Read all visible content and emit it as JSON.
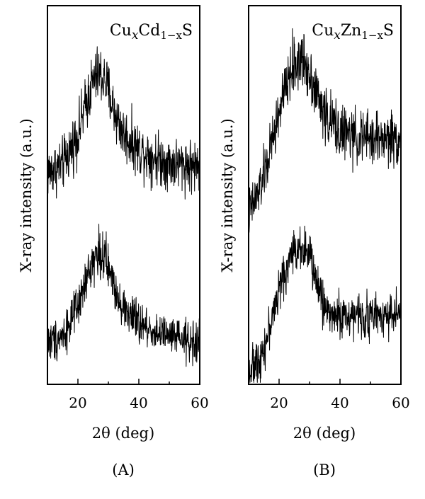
{
  "chart_data": [
    {
      "type": "line",
      "panel_label": "(A)",
      "title": "CuₓCd₁₋ₓS",
      "title_parts": {
        "base1": "Cu",
        "sub1": "x",
        "base2": "Cd",
        "sub2": "1−x",
        "base3": "S"
      },
      "xlabel": "2θ (deg)",
      "ylabel": "X-ray intensity (a.u.)",
      "xlim": [
        10,
        60
      ],
      "xticks": [
        20,
        40,
        60
      ],
      "yticks_shown": false,
      "grid": false,
      "legend": "none",
      "line_color": "#000000",
      "series": [
        {
          "x": [
            10,
            15,
            20,
            23,
            25,
            27,
            29,
            32,
            35,
            40,
            45,
            50,
            55,
            60
          ],
          "y": [
            0.56,
            0.58,
            0.66,
            0.75,
            0.8,
            0.82,
            0.8,
            0.72,
            0.66,
            0.62,
            0.6,
            0.585,
            0.58,
            0.575
          ],
          "noise": 0.035
        },
        {
          "x": [
            10,
            15,
            20,
            23,
            25,
            27,
            29,
            32,
            35,
            40,
            45,
            50,
            55,
            60
          ],
          "y": [
            0.11,
            0.13,
            0.2,
            0.28,
            0.33,
            0.35,
            0.33,
            0.26,
            0.2,
            0.16,
            0.14,
            0.125,
            0.115,
            0.11
          ],
          "noise": 0.035
        }
      ]
    },
    {
      "type": "line",
      "panel_label": "(B)",
      "title": "CuₓZn₁₋ₓS",
      "title_parts": {
        "base1": "Cu",
        "sub1": "x",
        "base2": "Zn",
        "sub2": "1−x",
        "base3": "S"
      },
      "xlabel": "2θ (deg)",
      "ylabel": "X-ray intensity (a.u.)",
      "xlim": [
        10,
        60
      ],
      "xticks": [
        20,
        40,
        60
      ],
      "yticks_shown": false,
      "grid": false,
      "legend": "none",
      "line_color": "#000000",
      "series": [
        {
          "x": [
            10,
            13,
            16,
            20,
            24,
            27,
            30,
            33,
            36,
            40,
            45,
            50,
            55,
            60
          ],
          "y": [
            0.45,
            0.5,
            0.58,
            0.72,
            0.83,
            0.86,
            0.83,
            0.75,
            0.7,
            0.67,
            0.65,
            0.65,
            0.65,
            0.65
          ],
          "noise": 0.035
        },
        {
          "x": [
            10,
            13,
            16,
            20,
            24,
            27,
            30,
            33,
            36,
            40,
            45,
            50,
            55,
            60
          ],
          "y": [
            0.03,
            0.06,
            0.12,
            0.25,
            0.34,
            0.37,
            0.34,
            0.25,
            0.19,
            0.18,
            0.18,
            0.18,
            0.185,
            0.19
          ],
          "noise": 0.035
        }
      ]
    }
  ]
}
